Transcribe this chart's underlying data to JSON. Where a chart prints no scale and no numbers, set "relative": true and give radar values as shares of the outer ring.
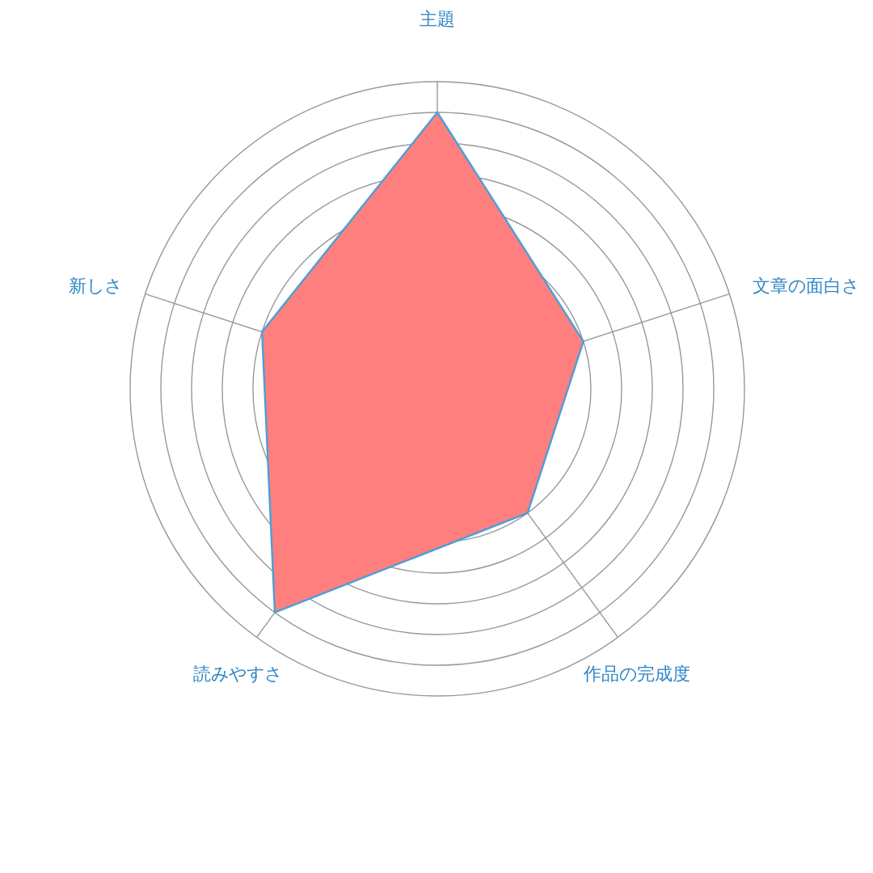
{
  "chart_data": {
    "type": "radar",
    "relative": true,
    "categories": [
      "主題",
      "文章の面白さ",
      "作品の完成度",
      "読みやすさ",
      "新しさ"
    ],
    "series": [
      {
        "color": "#ff7f7f",
        "values": [
          0.9,
          0.5,
          0.5,
          0.9,
          0.6
        ]
      }
    ]
  }
}
